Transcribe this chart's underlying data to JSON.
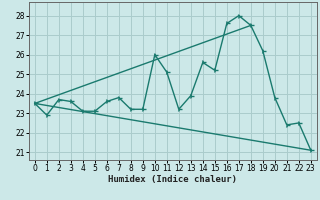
{
  "xlabel": "Humidex (Indice chaleur)",
  "bg_color": "#cce8e8",
  "grid_color": "#aacccc",
  "line_color": "#1a7a6e",
  "xlim": [
    -0.5,
    23.5
  ],
  "ylim": [
    20.6,
    28.7
  ],
  "yticks": [
    21,
    22,
    23,
    24,
    25,
    26,
    27,
    28
  ],
  "xticks": [
    0,
    1,
    2,
    3,
    4,
    5,
    6,
    7,
    8,
    9,
    10,
    11,
    12,
    13,
    14,
    15,
    16,
    17,
    18,
    19,
    20,
    21,
    22,
    23
  ],
  "line1_x": [
    0,
    1,
    2,
    3,
    4,
    5,
    6,
    7,
    8,
    9,
    10,
    11,
    12,
    13,
    14,
    15,
    16,
    17,
    18,
    19,
    20,
    21,
    22,
    23
  ],
  "line1_y": [
    23.5,
    22.9,
    23.7,
    23.6,
    23.1,
    23.1,
    23.6,
    23.8,
    23.2,
    23.2,
    26.0,
    25.1,
    23.2,
    23.9,
    25.6,
    25.2,
    27.6,
    28.0,
    27.5,
    26.2,
    23.8,
    22.4,
    22.5,
    21.1
  ],
  "line2_x": [
    0,
    18
  ],
  "line2_y": [
    23.5,
    27.5
  ],
  "line3_x": [
    0,
    23
  ],
  "line3_y": [
    23.5,
    21.1
  ]
}
